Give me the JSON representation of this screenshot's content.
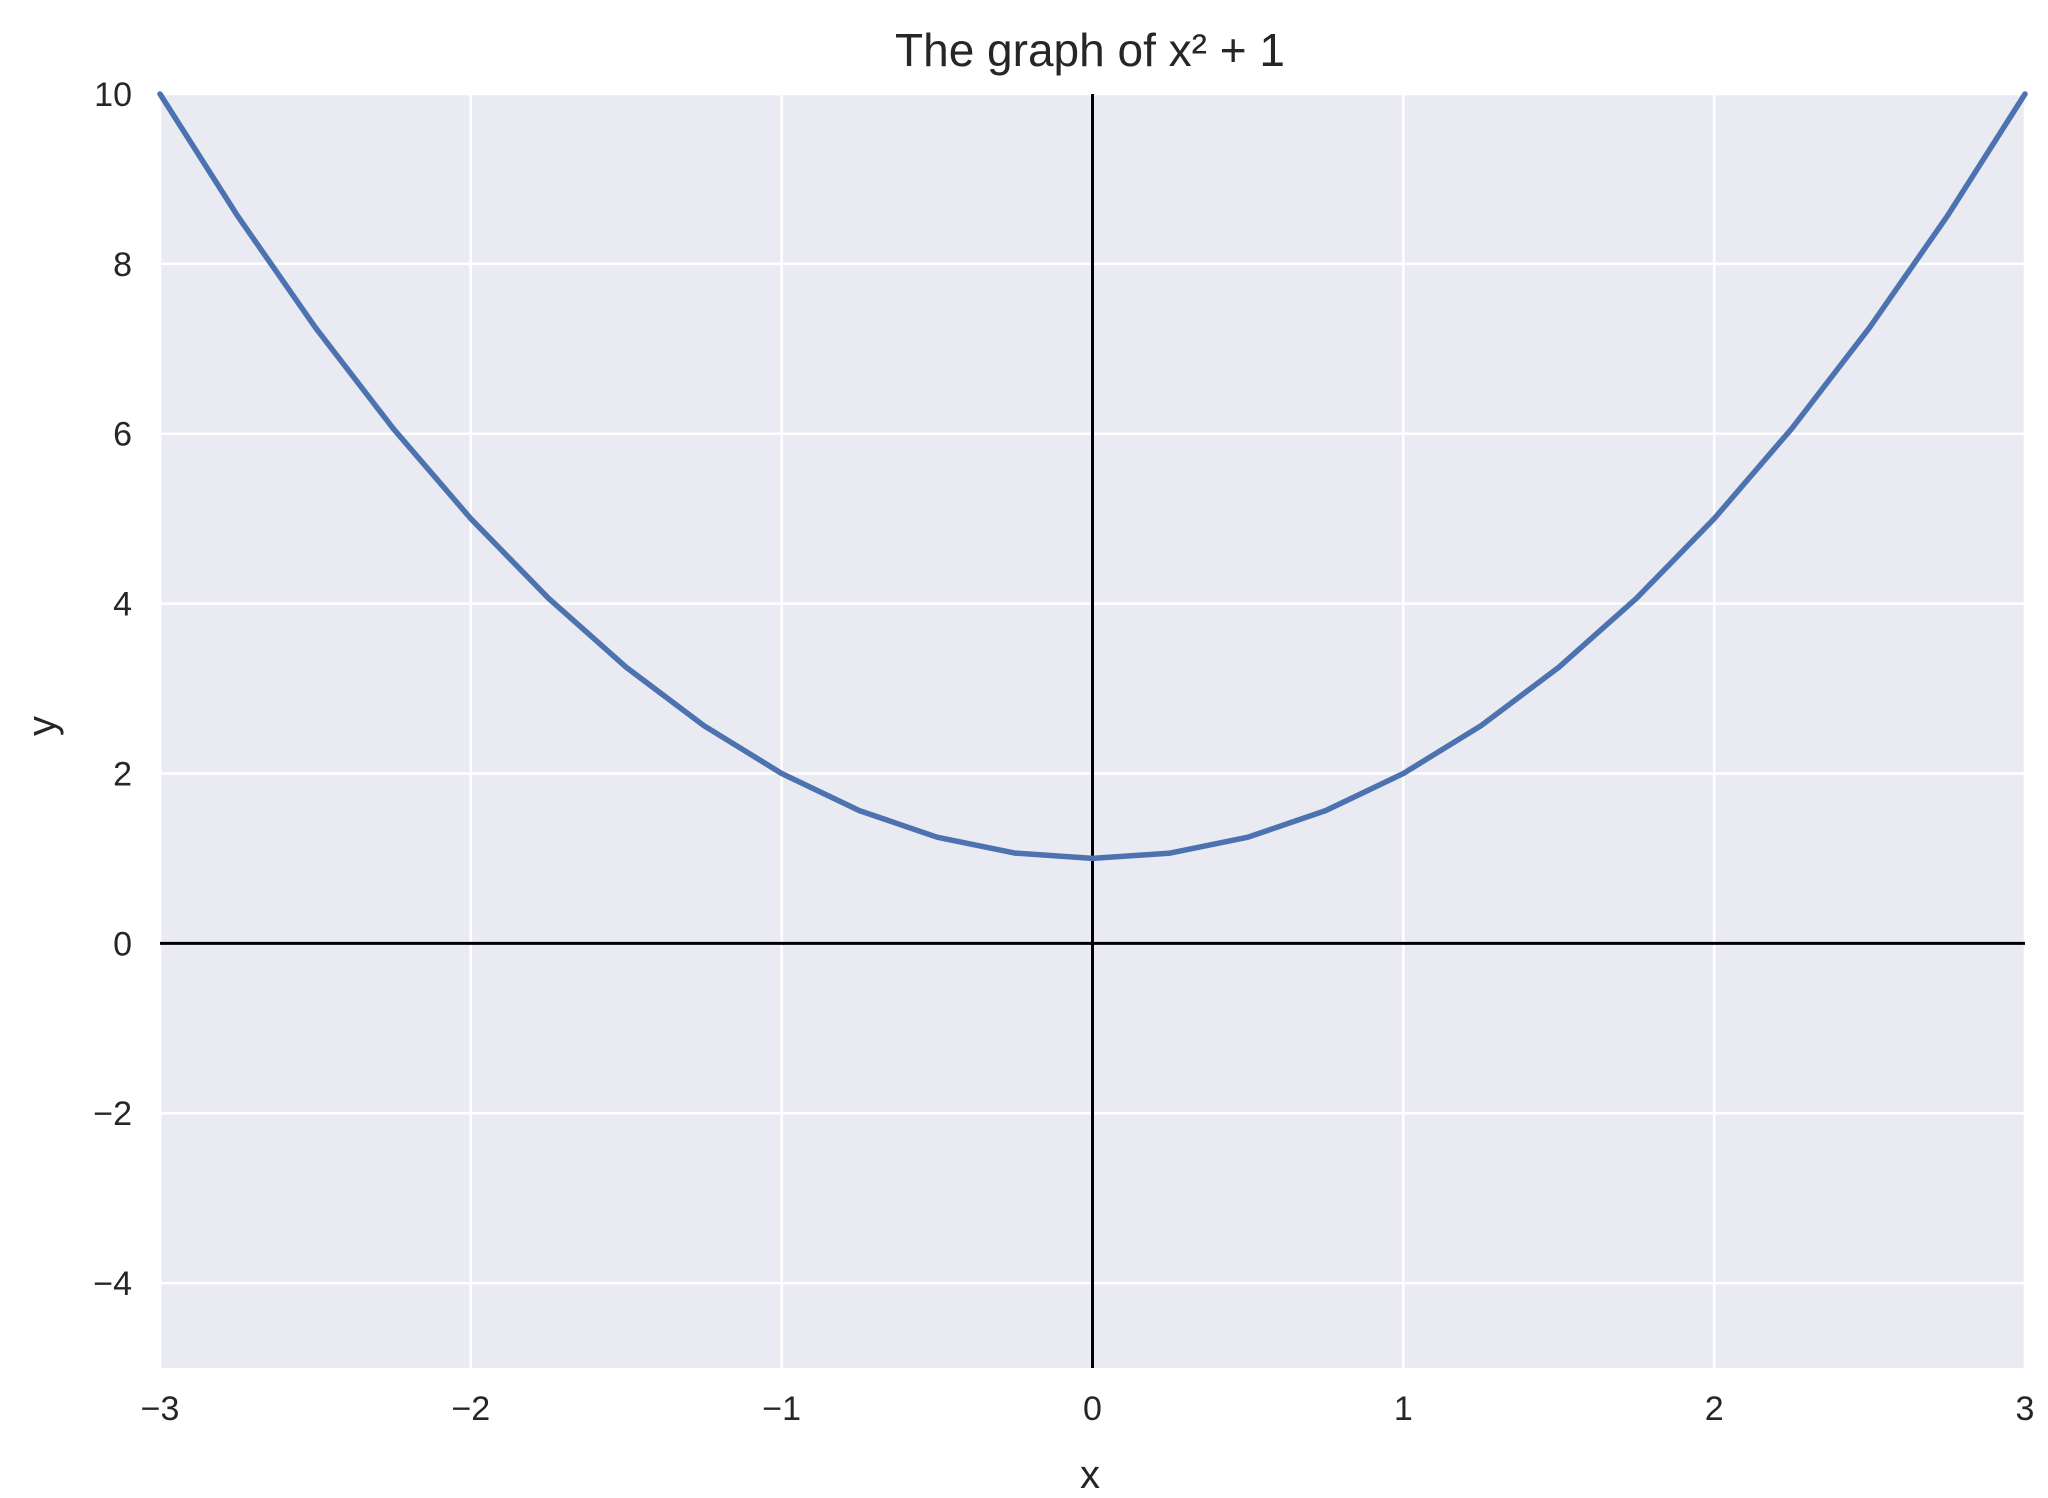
{
  "chart_data": {
    "type": "line",
    "title": "The graph of x² + 1",
    "xlabel": "x",
    "ylabel": "y",
    "xlim": [
      -3,
      3
    ],
    "ylim": [
      -5,
      10
    ],
    "xticks": [
      -3,
      -2,
      -1,
      0,
      1,
      2,
      3
    ],
    "xtick_labels": [
      "−3",
      "−2",
      "−1",
      "0",
      "1",
      "2",
      "3"
    ],
    "yticks": [
      -4,
      -2,
      0,
      2,
      4,
      6,
      8,
      10
    ],
    "ytick_labels": [
      "−4",
      "−2",
      "0",
      "2",
      "4",
      "6",
      "8",
      "10"
    ],
    "grid": true,
    "reference_lines": {
      "x": 0,
      "y": 0
    },
    "series": [
      {
        "x": [
          -3,
          -2.75,
          -2.5,
          -2.25,
          -2,
          -1.75,
          -1.5,
          -1.25,
          -1,
          -0.75,
          -0.5,
          -0.25,
          0,
          0.25,
          0.5,
          0.75,
          1,
          1.25,
          1.5,
          1.75,
          2,
          2.25,
          2.5,
          2.75,
          3
        ],
        "y": [
          10,
          8.5625,
          7.25,
          6.0625,
          5,
          4.0625,
          3.25,
          2.5625,
          2,
          1.5625,
          1.25,
          1.0625,
          1,
          1.0625,
          1.25,
          1.5625,
          2,
          2.5625,
          3.25,
          4.0625,
          5,
          6.0625,
          7.25,
          8.5625,
          10
        ]
      }
    ],
    "colors": {
      "line": "#4c72b0",
      "plot_background": "#eaeaf2",
      "grid": "#ffffff",
      "reference_lines": "#000000"
    }
  }
}
